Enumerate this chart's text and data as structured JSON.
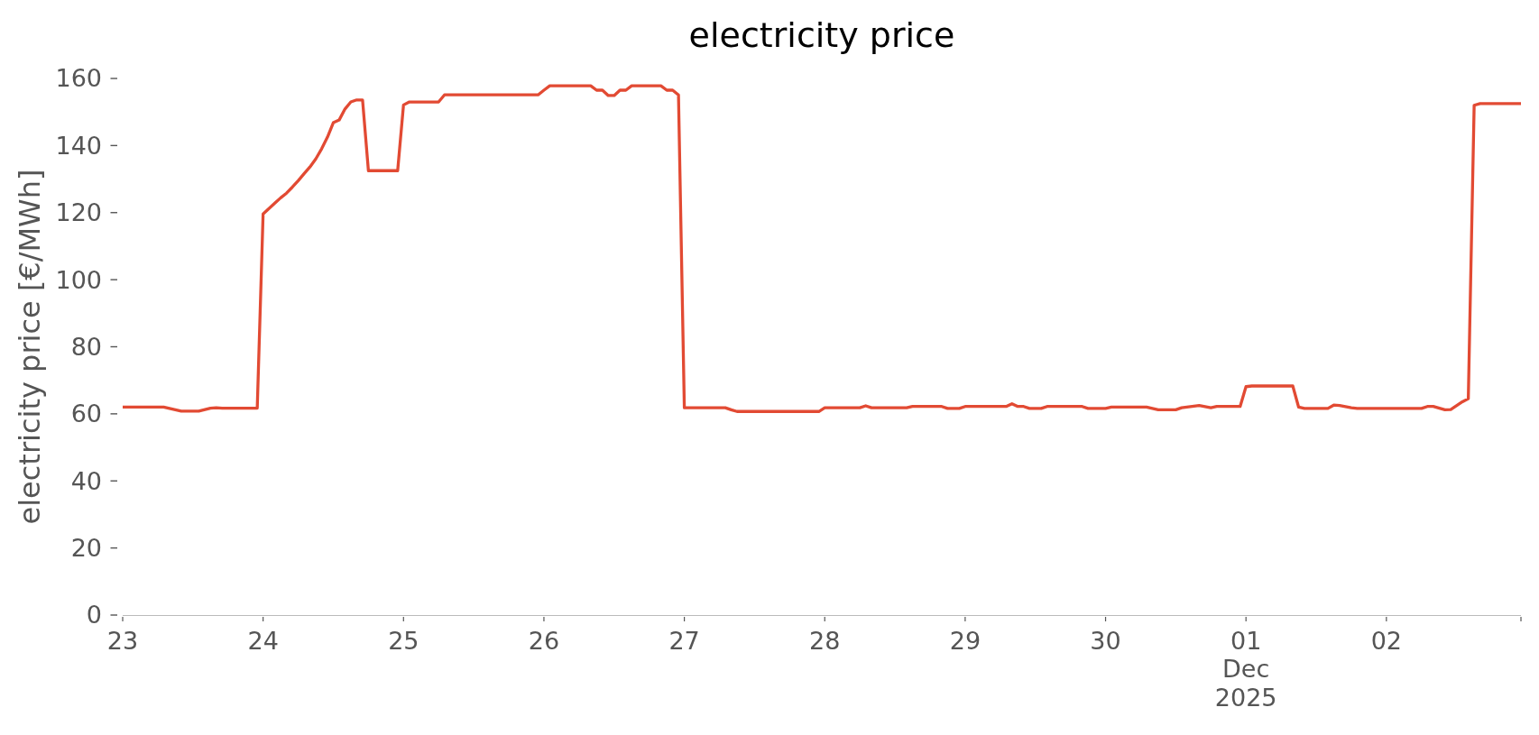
{
  "chart_data": {
    "type": "line",
    "title": "electricity price",
    "ylabel": "electricity price [€/MWh]",
    "x": [
      "2025-11-23T00:00",
      "2025-11-23T07:00",
      "2025-11-23T10:00",
      "2025-11-23T13:00",
      "2025-11-23T15:00",
      "2025-11-23T16:00",
      "2025-11-23T17:00",
      "2025-11-23T23:00",
      "2025-11-24T00:00",
      "2025-11-24T01:00",
      "2025-11-24T02:00",
      "2025-11-24T03:00",
      "2025-11-24T04:00",
      "2025-11-24T05:00",
      "2025-11-24T06:00",
      "2025-11-24T07:00",
      "2025-11-24T08:00",
      "2025-11-24T09:00",
      "2025-11-24T10:00",
      "2025-11-24T11:00",
      "2025-11-24T12:00",
      "2025-11-24T13:00",
      "2025-11-24T14:00",
      "2025-11-24T15:00",
      "2025-11-24T16:00",
      "2025-11-24T17:00",
      "2025-11-24T18:00",
      "2025-11-24T23:00",
      "2025-11-25T00:00",
      "2025-11-25T01:00",
      "2025-11-25T06:00",
      "2025-11-25T07:00",
      "2025-11-25T23:00",
      "2025-11-26T00:00",
      "2025-11-26T01:00",
      "2025-11-26T08:00",
      "2025-11-26T09:00",
      "2025-11-26T10:00",
      "2025-11-26T11:00",
      "2025-11-26T12:00",
      "2025-11-26T13:00",
      "2025-11-26T14:00",
      "2025-11-26T15:00",
      "2025-11-26T20:00",
      "2025-11-26T21:00",
      "2025-11-26T22:00",
      "2025-11-26T23:00",
      "2025-11-27T00:00",
      "2025-11-27T07:00",
      "2025-11-27T08:00",
      "2025-11-27T09:00",
      "2025-11-27T23:00",
      "2025-11-28T00:00",
      "2025-11-28T06:00",
      "2025-11-28T07:00",
      "2025-11-28T08:00",
      "2025-11-28T14:00",
      "2025-11-28T15:00",
      "2025-11-28T20:00",
      "2025-11-28T21:00",
      "2025-11-28T23:00",
      "2025-11-29T00:00",
      "2025-11-29T07:00",
      "2025-11-29T08:00",
      "2025-11-29T09:00",
      "2025-11-29T10:00",
      "2025-11-29T11:00",
      "2025-11-29T13:00",
      "2025-11-29T14:00",
      "2025-11-29T20:00",
      "2025-11-29T21:00",
      "2025-11-30T00:00",
      "2025-11-30T01:00",
      "2025-11-30T07:00",
      "2025-11-30T09:00",
      "2025-11-30T12:00",
      "2025-11-30T13:00",
      "2025-11-30T16:00",
      "2025-11-30T18:00",
      "2025-11-30T19:00",
      "2025-11-30T23:00",
      "2025-12-01T00:00",
      "2025-12-01T01:00",
      "2025-12-01T08:00",
      "2025-12-01T09:00",
      "2025-12-01T10:00",
      "2025-12-01T14:00",
      "2025-12-01T15:00",
      "2025-12-01T16:00",
      "2025-12-01T18:00",
      "2025-12-01T19:00",
      "2025-12-02T06:00",
      "2025-12-02T07:00",
      "2025-12-02T08:00",
      "2025-12-02T10:00",
      "2025-12-02T11:00",
      "2025-12-02T13:00",
      "2025-12-02T14:00",
      "2025-12-02T15:00",
      "2025-12-02T16:00",
      "2025-12-02T23:00"
    ],
    "series": [
      {
        "color": "#e24a33",
        "values": [
          62.0,
          62.0,
          60.8,
          60.8,
          61.7,
          61.8,
          61.7,
          61.7,
          119.6,
          121.2,
          122.8,
          124.4,
          125.8,
          127.6,
          129.5,
          131.6,
          133.6,
          136.0,
          139.0,
          142.5,
          146.8,
          147.6,
          150.9,
          153.0,
          153.6,
          153.6,
          132.5,
          132.5,
          152.1,
          153.0,
          153.0,
          155.1,
          155.1,
          156.5,
          157.8,
          157.8,
          156.5,
          156.5,
          154.9,
          154.9,
          156.5,
          156.5,
          157.8,
          157.8,
          156.5,
          156.5,
          155.1,
          61.8,
          61.8,
          61.2,
          60.7,
          60.7,
          61.8,
          61.8,
          62.4,
          61.8,
          61.8,
          62.2,
          62.2,
          61.6,
          61.6,
          62.2,
          62.2,
          63.0,
          62.2,
          62.2,
          61.6,
          61.6,
          62.2,
          62.2,
          61.6,
          61.6,
          62.0,
          62.0,
          61.2,
          61.2,
          61.8,
          62.5,
          61.8,
          62.2,
          62.2,
          68.1,
          68.3,
          68.3,
          62.0,
          61.6,
          61.6,
          62.6,
          62.5,
          61.8,
          61.6,
          61.6,
          62.2,
          62.2,
          61.2,
          61.3,
          63.6,
          64.5,
          152.0,
          152.5,
          152.5
        ]
      }
    ],
    "xlim": [
      "2025-11-23T00:00",
      "2025-12-02T23:00"
    ],
    "xticks": [
      {
        "value": "2025-11-23",
        "label": "23"
      },
      {
        "value": "2025-11-24",
        "label": "24"
      },
      {
        "value": "2025-11-25",
        "label": "25"
      },
      {
        "value": "2025-11-26",
        "label": "26"
      },
      {
        "value": "2025-11-27",
        "label": "27"
      },
      {
        "value": "2025-11-28",
        "label": "28"
      },
      {
        "value": "2025-11-29",
        "label": "29"
      },
      {
        "value": "2025-11-30",
        "label": "30"
      },
      {
        "value": "2025-12-01",
        "label": "01\nDec\n2025"
      },
      {
        "value": "2025-12-02",
        "label": "02"
      },
      {
        "value": "2025-12-02T23:00",
        "label": null
      }
    ],
    "ylim": [
      0,
      160
    ],
    "yticks": [
      0,
      20,
      40,
      60,
      80,
      100,
      120,
      140,
      160
    ]
  }
}
